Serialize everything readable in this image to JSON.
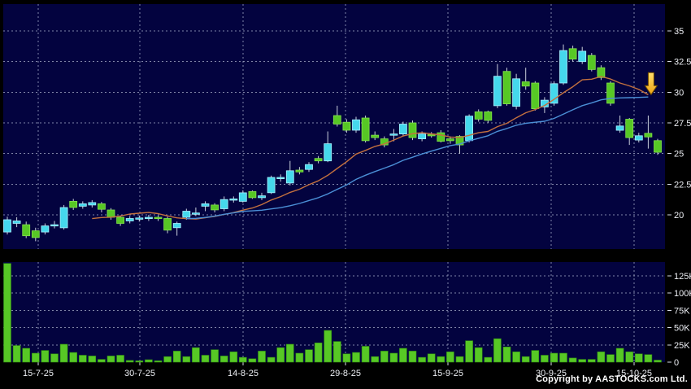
{
  "page": {
    "copyright": "Copyright by AASTOCKS.com Ltd."
  },
  "colors": {
    "background": "#000000",
    "panel_bg": "#03033F",
    "grid": "#A9AFCB",
    "text": "#EDEFF4",
    "up": "#45D8EC",
    "up_edge": "#A8F2FF",
    "down": "#57C825",
    "down_edge": "#83E24C",
    "wick": "#C9CFDC",
    "volume": "#57C825",
    "volume_edge": "#2F8A12",
    "arrow": "#F7B32B"
  },
  "chart_data": [
    {
      "type": "candlestick",
      "name": "daily-price",
      "grid": true,
      "legend": "none",
      "y_axis": {
        "side": "right",
        "range": [
          17.2,
          35.7
        ],
        "ticks": [
          {
            "value": 35,
            "label": "35"
          },
          {
            "value": 32.5,
            "label": "32.5"
          },
          {
            "value": 30,
            "label": "30"
          },
          {
            "value": 27.5,
            "label": "27.5"
          },
          {
            "value": 25,
            "label": "25"
          },
          {
            "value": 22.5,
            "label": "22.5"
          },
          {
            "value": 20,
            "label": "20"
          }
        ]
      },
      "x_axis": {
        "ticks": [
          {
            "label": "15-7-25",
            "i": 3.28
          },
          {
            "label": "30-7-25",
            "i": 14.06
          },
          {
            "label": "14-8-25",
            "i": 25.01
          },
          {
            "label": "29-8-25",
            "i": 35.88
          },
          {
            "label": "15-9-25",
            "i": 46.75
          },
          {
            "label": "30-9-25",
            "i": 57.7
          },
          {
            "label": "15-10-25",
            "i": 66.5
          }
        ]
      },
      "series": {
        "ohlc": [
          [
            18.6,
            19.85,
            18.4,
            19.6
          ],
          [
            19.3,
            19.8,
            19.0,
            19.5
          ],
          [
            19.2,
            19.45,
            18.1,
            18.3
          ],
          [
            18.7,
            18.95,
            17.85,
            18.15
          ],
          [
            18.6,
            19.3,
            18.4,
            19.1
          ],
          [
            19.1,
            19.5,
            18.9,
            19.2
          ],
          [
            18.95,
            20.8,
            18.8,
            20.6
          ],
          [
            21.1,
            21.3,
            20.4,
            20.6
          ],
          [
            20.7,
            21.1,
            20.5,
            20.9
          ],
          [
            20.8,
            21.2,
            20.6,
            21.0
          ],
          [
            20.9,
            21.05,
            20.2,
            20.45
          ],
          [
            20.4,
            20.55,
            19.6,
            19.8
          ],
          [
            19.8,
            19.95,
            19.1,
            19.3
          ],
          [
            19.5,
            19.9,
            19.3,
            19.7
          ],
          [
            19.7,
            19.95,
            19.45,
            19.75
          ],
          [
            19.7,
            20.0,
            19.5,
            19.8
          ],
          [
            19.8,
            19.95,
            19.5,
            19.7
          ],
          [
            19.7,
            19.85,
            18.5,
            18.75
          ],
          [
            18.95,
            19.45,
            18.3,
            19.3
          ],
          [
            19.8,
            20.5,
            19.6,
            20.3
          ],
          [
            20.1,
            20.6,
            19.9,
            20.15
          ],
          [
            20.7,
            21.1,
            20.3,
            20.9
          ],
          [
            20.8,
            20.95,
            20.2,
            20.4
          ],
          [
            20.5,
            21.5,
            20.3,
            21.25
          ],
          [
            21.2,
            21.5,
            21.0,
            21.3
          ],
          [
            21.1,
            22.0,
            21.0,
            21.8
          ],
          [
            21.9,
            22.0,
            21.3,
            21.4
          ],
          [
            21.4,
            21.8,
            21.2,
            21.55
          ],
          [
            21.8,
            23.2,
            21.7,
            23.05
          ],
          [
            23.0,
            23.3,
            22.7,
            23.05
          ],
          [
            22.6,
            24.4,
            22.4,
            23.6
          ],
          [
            23.65,
            23.9,
            23.3,
            23.5
          ],
          [
            23.7,
            24.3,
            23.5,
            24.1
          ],
          [
            24.6,
            24.8,
            24.2,
            24.4
          ],
          [
            24.4,
            26.8,
            24.3,
            25.8
          ],
          [
            28.1,
            28.9,
            27.2,
            27.4
          ],
          [
            27.55,
            27.8,
            26.7,
            26.9
          ],
          [
            26.9,
            28.0,
            26.7,
            27.75
          ],
          [
            27.9,
            28.1,
            25.9,
            26.05
          ],
          [
            26.5,
            26.8,
            26.1,
            26.3
          ],
          [
            26.2,
            26.4,
            25.5,
            25.7
          ],
          [
            26.5,
            27.0,
            26.0,
            26.6
          ],
          [
            26.6,
            27.6,
            26.4,
            27.4
          ],
          [
            27.5,
            27.7,
            26.1,
            26.3
          ],
          [
            26.2,
            26.8,
            26.0,
            26.6
          ],
          [
            26.55,
            26.75,
            26.3,
            26.45
          ],
          [
            26.7,
            26.9,
            25.9,
            26.0
          ],
          [
            26.2,
            26.4,
            25.8,
            26.05
          ],
          [
            26.4,
            26.5,
            25.0,
            25.7
          ],
          [
            26.05,
            28.2,
            25.9,
            28.05
          ],
          [
            28.4,
            28.6,
            27.6,
            27.8
          ],
          [
            28.4,
            28.5,
            27.5,
            27.7
          ],
          [
            28.9,
            32.3,
            28.7,
            31.3
          ],
          [
            31.7,
            32.0,
            28.9,
            29.05
          ],
          [
            28.85,
            31.5,
            28.6,
            31.1
          ],
          [
            30.85,
            32.0,
            30.2,
            30.5
          ],
          [
            30.75,
            30.9,
            28.5,
            28.65
          ],
          [
            28.8,
            29.6,
            28.3,
            29.35
          ],
          [
            29.1,
            30.9,
            28.9,
            30.7
          ],
          [
            30.75,
            33.9,
            30.6,
            33.4
          ],
          [
            33.55,
            33.8,
            32.5,
            32.7
          ],
          [
            32.5,
            33.7,
            32.3,
            33.35
          ],
          [
            33.0,
            33.2,
            31.7,
            31.85
          ],
          [
            32.0,
            32.2,
            31.0,
            31.2
          ],
          [
            30.75,
            30.9,
            28.9,
            29.1
          ],
          [
            26.9,
            28.1,
            26.7,
            27.25
          ],
          [
            27.8,
            27.9,
            25.7,
            26.3
          ],
          [
            26.1,
            26.7,
            25.9,
            26.45
          ],
          [
            26.65,
            28.1,
            25.4,
            26.35
          ],
          [
            26.05,
            26.2,
            24.9,
            25.1
          ]
        ]
      },
      "moving_averages": [
        {
          "name": "MA10",
          "window": 10,
          "color": "#C4713F",
          "ends_at_index": 68
        },
        {
          "name": "MA20",
          "window": 20,
          "color": "#4B8FD6",
          "ends_at_index": 68
        }
      ],
      "annotations": [
        {
          "type": "down-arrow",
          "i": 68.3,
          "price": 29.8,
          "color": "#F7B32B"
        }
      ]
    },
    {
      "type": "bar",
      "name": "volume",
      "unit": "K",
      "grid": true,
      "y_axis": {
        "side": "right",
        "range": [
          0,
          145
        ],
        "ticks": [
          {
            "value": 125,
            "label": "125K"
          },
          {
            "value": 100,
            "label": "100K"
          },
          {
            "value": 75,
            "label": "75K"
          },
          {
            "value": 50,
            "label": "50K"
          },
          {
            "value": 25,
            "label": "25K"
          },
          {
            "value": 0,
            "label": "0"
          }
        ]
      },
      "values": [
        143,
        24,
        20,
        13,
        17,
        12,
        26,
        14,
        10,
        9,
        4,
        9,
        10,
        2.5,
        2,
        3.5,
        2,
        8,
        16,
        8,
        21,
        10,
        18,
        9,
        15,
        7,
        5,
        16,
        7,
        21,
        26,
        13,
        18,
        28,
        46,
        30,
        12,
        14,
        23,
        8,
        16,
        13,
        20,
        16,
        7,
        12,
        8,
        15,
        8,
        31,
        21,
        7,
        34,
        22,
        15,
        8,
        17,
        10,
        13,
        13,
        6,
        4,
        4,
        15,
        11,
        20,
        15,
        12,
        11,
        3
      ]
    }
  ]
}
